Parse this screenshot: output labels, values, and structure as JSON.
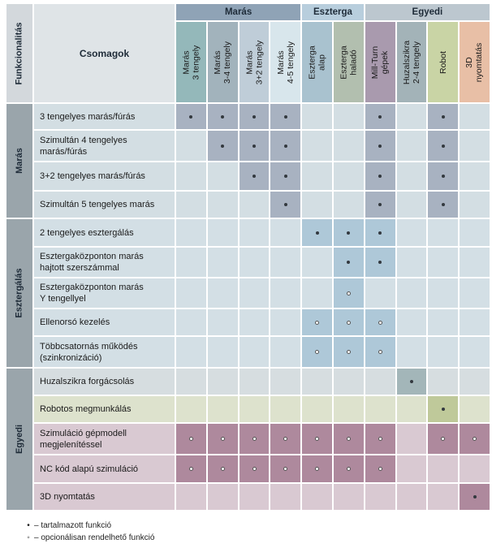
{
  "colors": {
    "grid": "#ffffff",
    "header_bg": "#dfe4e7",
    "header_gray": "#d3d8dc",
    "side_gray": "#9aa5ab",
    "sub_bg": "#d8e1e5",
    "header_groups": {
      "mill": "#8fa3b6",
      "lathe": "#b8cedd",
      "custom": "#bcc7cf"
    },
    "columns": [
      "#94b8ba",
      "#a2b3bc",
      "#bfcdd8",
      "#d8e6ec",
      "#a9c2cf",
      "#b2bfaf",
      "#a99aae",
      "#a3b3b8",
      "#c9d4a5",
      "#e8bfa6"
    ],
    "sections": {
      "mill": {
        "bg": "#d3dee3",
        "hi": "#a8b2c1"
      },
      "lathe": {
        "bg": "#d3dfe5",
        "hi": "#aec8d8"
      },
      "wire": {
        "bg": "#d6dde0",
        "hi": "#a3b6b9"
      },
      "robot": {
        "bg": "#dde2cd",
        "hi": "#bfc99a"
      },
      "custom": {
        "bg": "#d9c9d2",
        "hi": "#ae899d"
      }
    }
  },
  "header": {
    "functionality_label": "Funkcionalitás",
    "packages_label": "Csomagok",
    "groups": [
      {
        "label": "Marás",
        "span": [
          0,
          3
        ]
      },
      {
        "label": "Esztergа",
        "span": [
          4,
          5
        ]
      },
      {
        "label": "Egyedi",
        "span": [
          6,
          9
        ]
      }
    ],
    "columns": [
      [
        "Marás",
        "3 tengely"
      ],
      [
        "Marás",
        "3-4 tengely"
      ],
      [
        "Marás",
        "3+2 tengely"
      ],
      [
        "Marás",
        "4-5 tengely"
      ],
      [
        "Eszterga",
        "alap"
      ],
      [
        "Eszterga",
        "haladó"
      ],
      [
        "Mill-Turn",
        "gépek"
      ],
      [
        "Huzalszikra",
        "2-4 tengely"
      ],
      [
        "Robot"
      ],
      [
        "3D",
        "nyomtatás"
      ]
    ]
  },
  "sections": [
    {
      "label": "Marás",
      "palette": "mill",
      "rows": [
        {
          "label": [
            "3 tengelyes marás/fúrás"
          ],
          "marks": [
            "dot",
            "dot",
            "dot",
            "dot",
            "",
            "",
            "dot",
            "",
            "dot",
            ""
          ]
        },
        {
          "label": [
            "Szimultán 4 tengelyes",
            "marás/fúrás"
          ],
          "marks": [
            "",
            "dot",
            "dot",
            "dot",
            "",
            "",
            "dot",
            "",
            "dot",
            ""
          ]
        },
        {
          "label": [
            "3+2 tengelyes marás/fúrás"
          ],
          "marks": [
            "",
            "",
            "dot",
            "dot",
            "",
            "",
            "dot",
            "",
            "dot",
            ""
          ]
        },
        {
          "label": [
            "Szimultán 5 tengelyes marás"
          ],
          "marks": [
            "",
            "",
            "",
            "dot",
            "",
            "",
            "dot",
            "",
            "dot",
            ""
          ]
        }
      ]
    },
    {
      "label": "Esztergálás",
      "palette": "lathe",
      "rows": [
        {
          "label": [
            "2 tengelyes esztergálás"
          ],
          "marks": [
            "",
            "",
            "",
            "",
            "dot",
            "dot",
            "dot",
            "",
            "",
            ""
          ]
        },
        {
          "label": [
            "Esztergaközponton marás",
            "hajtott szerszámmal"
          ],
          "marks": [
            "",
            "",
            "",
            "",
            "",
            "dot",
            "dot",
            "",
            "",
            ""
          ]
        },
        {
          "label": [
            "Esztergaközponton marás",
            "Y tengellyel"
          ],
          "marks": [
            "",
            "",
            "",
            "",
            "",
            "circle",
            "",
            "",
            "",
            ""
          ]
        },
        {
          "label": [
            "Ellenorsó kezelés"
          ],
          "marks": [
            "",
            "",
            "",
            "",
            "circle",
            "circle",
            "circle",
            "",
            "",
            ""
          ]
        },
        {
          "label": [
            "Többcsatornás működés",
            "(szinkronizáció)"
          ],
          "marks": [
            "",
            "",
            "",
            "",
            "circle",
            "circle",
            "circle",
            "",
            "",
            ""
          ]
        }
      ]
    },
    {
      "label": "Egyedi",
      "palette": "custom",
      "rows": [
        {
          "label": [
            "Huzalszikra forgácsolás"
          ],
          "palette": "wire",
          "marks": [
            "",
            "",
            "",
            "",
            "",
            "",
            "",
            "dot",
            "",
            ""
          ]
        },
        {
          "label": [
            "Robotos megmunkálás"
          ],
          "palette": "robot",
          "marks": [
            "",
            "",
            "",
            "",
            "",
            "",
            "",
            "",
            "dot",
            ""
          ]
        },
        {
          "label": [
            "Szimuláció gépmodell",
            "megjelenítéssel"
          ],
          "palette": "custom",
          "marks": [
            "circle",
            "circle",
            "circle",
            "circle",
            "circle",
            "circle",
            "circle",
            "",
            "circle",
            "circle"
          ]
        },
        {
          "label": [
            "NC kód alapú szimuláció"
          ],
          "palette": "custom",
          "marks": [
            "circle",
            "circle",
            "circle",
            "circle",
            "circle",
            "circle",
            "circle",
            "",
            "",
            ""
          ]
        },
        {
          "label": [
            "3D nyomtatás"
          ],
          "palette": "custom",
          "marks": [
            "",
            "",
            "",
            "",
            "",
            "",
            "",
            "",
            "",
            "dot"
          ]
        }
      ]
    }
  ],
  "legend": [
    {
      "symbol": "•",
      "text": "– tartalmazott funkció"
    },
    {
      "symbol": "◦",
      "text": "– opcionálisan rendelhető funkció"
    }
  ]
}
